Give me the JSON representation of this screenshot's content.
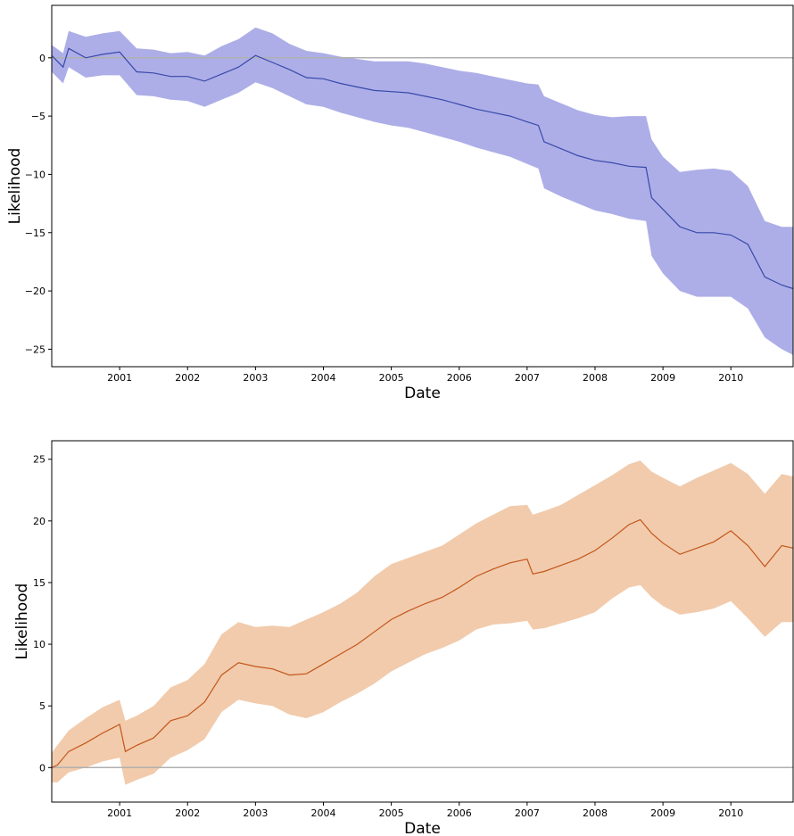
{
  "chart_data": [
    {
      "type": "area",
      "title": "",
      "xlabel": "Date",
      "ylabel": "Likelihood",
      "xlim": [
        "2000-01",
        "2010-12"
      ],
      "ylim": [
        -26.5,
        4.5
      ],
      "x_ticks": [
        "2001",
        "2002",
        "2003",
        "2004",
        "2005",
        "2006",
        "2007",
        "2008",
        "2009",
        "2010"
      ],
      "y_ticks": [
        {
          "value": 0,
          "label": "0"
        },
        {
          "value": -5,
          "label": "−5"
        },
        {
          "value": -10,
          "label": "−10"
        },
        {
          "value": -15,
          "label": "−15"
        },
        {
          "value": -20,
          "label": "−20"
        },
        {
          "value": -25,
          "label": "−25"
        }
      ],
      "reference_line": 0,
      "grid": false,
      "colors": {
        "line": "#3949ab",
        "band": "#a9aae6",
        "reference": "#b0b0b0"
      },
      "series": [
        {
          "x": [
            "2000-01",
            "2000-03",
            "2000-04",
            "2000-07",
            "2000-10",
            "2001-01",
            "2001-04",
            "2001-07",
            "2001-10",
            "2002-01",
            "2002-04",
            "2002-07",
            "2002-10",
            "2003-01",
            "2003-04",
            "2003-07",
            "2003-10",
            "2004-01",
            "2004-04",
            "2004-07",
            "2004-10",
            "2005-01",
            "2005-04",
            "2005-07",
            "2005-10",
            "2006-01",
            "2006-04",
            "2006-07",
            "2006-10",
            "2007-01",
            "2007-03",
            "2007-04",
            "2007-07",
            "2007-10",
            "2008-01",
            "2008-04",
            "2008-07",
            "2008-10",
            "2008-11",
            "2009-01",
            "2009-04",
            "2009-07",
            "2009-10",
            "2010-01",
            "2010-04",
            "2010-07",
            "2010-10",
            "2010-12"
          ],
          "y": [
            0.2,
            -0.8,
            0.8,
            0.0,
            0.3,
            0.5,
            -1.2,
            -1.3,
            -1.6,
            -1.6,
            -2.0,
            -1.4,
            -0.8,
            0.2,
            -0.4,
            -1.0,
            -1.7,
            -1.8,
            -2.2,
            -2.5,
            -2.8,
            -2.9,
            -3.0,
            -3.3,
            -3.6,
            -4.0,
            -4.4,
            -4.7,
            -5.0,
            -5.5,
            -5.8,
            -7.2,
            -7.8,
            -8.4,
            -8.8,
            -9.0,
            -9.3,
            -9.4,
            -12.0,
            -13.0,
            -14.5,
            -15.0,
            -15.0,
            -15.2,
            -16.0,
            -18.8,
            -19.5,
            -19.8
          ],
          "lower": [
            -1.2,
            -2.2,
            -0.8,
            -1.7,
            -1.5,
            -1.5,
            -3.2,
            -3.3,
            -3.6,
            -3.7,
            -4.2,
            -3.6,
            -3.0,
            -2.1,
            -2.6,
            -3.3,
            -4.0,
            -4.2,
            -4.7,
            -5.1,
            -5.5,
            -5.8,
            -6.0,
            -6.4,
            -6.8,
            -7.2,
            -7.7,
            -8.1,
            -8.5,
            -9.1,
            -9.5,
            -11.2,
            -11.9,
            -12.5,
            -13.1,
            -13.4,
            -13.8,
            -14.0,
            -17.0,
            -18.5,
            -20.0,
            -20.5,
            -20.5,
            -20.5,
            -21.5,
            -24.0,
            -25.0,
            -25.5
          ],
          "upper": [
            1.1,
            0.4,
            2.3,
            1.8,
            2.1,
            2.3,
            0.8,
            0.7,
            0.4,
            0.5,
            0.2,
            1.0,
            1.6,
            2.6,
            2.1,
            1.2,
            0.6,
            0.4,
            0.1,
            -0.1,
            -0.3,
            -0.3,
            -0.3,
            -0.5,
            -0.8,
            -1.1,
            -1.3,
            -1.6,
            -1.9,
            -2.2,
            -2.3,
            -3.3,
            -3.9,
            -4.5,
            -4.9,
            -5.1,
            -5.0,
            -5.0,
            -7.0,
            -8.5,
            -9.8,
            -9.6,
            -9.5,
            -9.7,
            -11.0,
            -14.0,
            -14.5,
            -14.5
          ]
        }
      ]
    },
    {
      "type": "area",
      "title": "",
      "xlabel": "Date",
      "ylabel": "Likelihood",
      "xlim": [
        "2000-01",
        "2010-12"
      ],
      "ylim": [
        -2.8,
        26.5
      ],
      "x_ticks": [
        "2001",
        "2002",
        "2003",
        "2004",
        "2005",
        "2006",
        "2007",
        "2008",
        "2009",
        "2010"
      ],
      "y_ticks": [
        {
          "value": 0,
          "label": "0"
        },
        {
          "value": 5,
          "label": "5"
        },
        {
          "value": 10,
          "label": "10"
        },
        {
          "value": 15,
          "label": "15"
        },
        {
          "value": 20,
          "label": "20"
        },
        {
          "value": 25,
          "label": "25"
        }
      ],
      "reference_line": 0,
      "grid": false,
      "colors": {
        "line": "#c4561a",
        "band": "#f0c8a8",
        "reference": "#b0b0b0"
      },
      "series": [
        {
          "x": [
            "2000-01",
            "2000-02",
            "2000-04",
            "2000-07",
            "2000-10",
            "2001-01",
            "2001-02",
            "2001-04",
            "2001-07",
            "2001-10",
            "2002-01",
            "2002-04",
            "2002-07",
            "2002-10",
            "2003-01",
            "2003-04",
            "2003-07",
            "2003-10",
            "2004-01",
            "2004-04",
            "2004-07",
            "2004-10",
            "2005-01",
            "2005-04",
            "2005-07",
            "2005-10",
            "2006-01",
            "2006-04",
            "2006-07",
            "2006-10",
            "2007-01",
            "2007-02",
            "2007-04",
            "2007-07",
            "2007-10",
            "2008-01",
            "2008-04",
            "2008-07",
            "2008-09",
            "2008-11",
            "2009-01",
            "2009-04",
            "2009-07",
            "2009-10",
            "2010-01",
            "2010-04",
            "2010-07",
            "2010-10",
            "2010-12"
          ],
          "y": [
            0.0,
            0.2,
            1.3,
            2.0,
            2.8,
            3.5,
            1.3,
            1.8,
            2.4,
            3.8,
            4.2,
            5.3,
            7.5,
            8.5,
            8.2,
            8.0,
            7.5,
            7.6,
            8.4,
            9.2,
            10.0,
            11.0,
            12.0,
            12.7,
            13.3,
            13.8,
            14.6,
            15.5,
            16.1,
            16.6,
            16.9,
            15.7,
            15.9,
            16.4,
            16.9,
            17.6,
            18.6,
            19.7,
            20.1,
            19.0,
            18.2,
            17.3,
            17.8,
            18.3,
            19.2,
            18.0,
            16.3,
            18.0,
            17.8
          ],
          "lower": [
            -1.2,
            -1.2,
            -0.4,
            0.0,
            0.5,
            0.8,
            -1.4,
            -1.0,
            -0.5,
            0.8,
            1.4,
            2.3,
            4.5,
            5.5,
            5.2,
            5.0,
            4.3,
            4.0,
            4.5,
            5.3,
            6.0,
            6.8,
            7.8,
            8.5,
            9.2,
            9.7,
            10.3,
            11.2,
            11.6,
            11.7,
            11.9,
            11.2,
            11.3,
            11.7,
            12.1,
            12.6,
            13.7,
            14.6,
            14.8,
            13.8,
            13.1,
            12.4,
            12.6,
            12.9,
            13.5,
            12.1,
            10.6,
            11.8,
            11.8
          ],
          "upper": [
            1.2,
            1.8,
            3.0,
            4.0,
            4.9,
            5.5,
            3.8,
            4.2,
            5.0,
            6.5,
            7.1,
            8.4,
            10.8,
            11.8,
            11.4,
            11.5,
            11.4,
            12.0,
            12.6,
            13.3,
            14.2,
            15.5,
            16.5,
            17.0,
            17.5,
            18.0,
            18.9,
            19.8,
            20.5,
            21.2,
            21.3,
            20.5,
            20.8,
            21.3,
            22.1,
            22.9,
            23.7,
            24.6,
            24.9,
            24.0,
            23.5,
            22.8,
            23.5,
            24.1,
            24.7,
            23.8,
            22.2,
            23.8,
            23.6
          ]
        }
      ]
    }
  ]
}
